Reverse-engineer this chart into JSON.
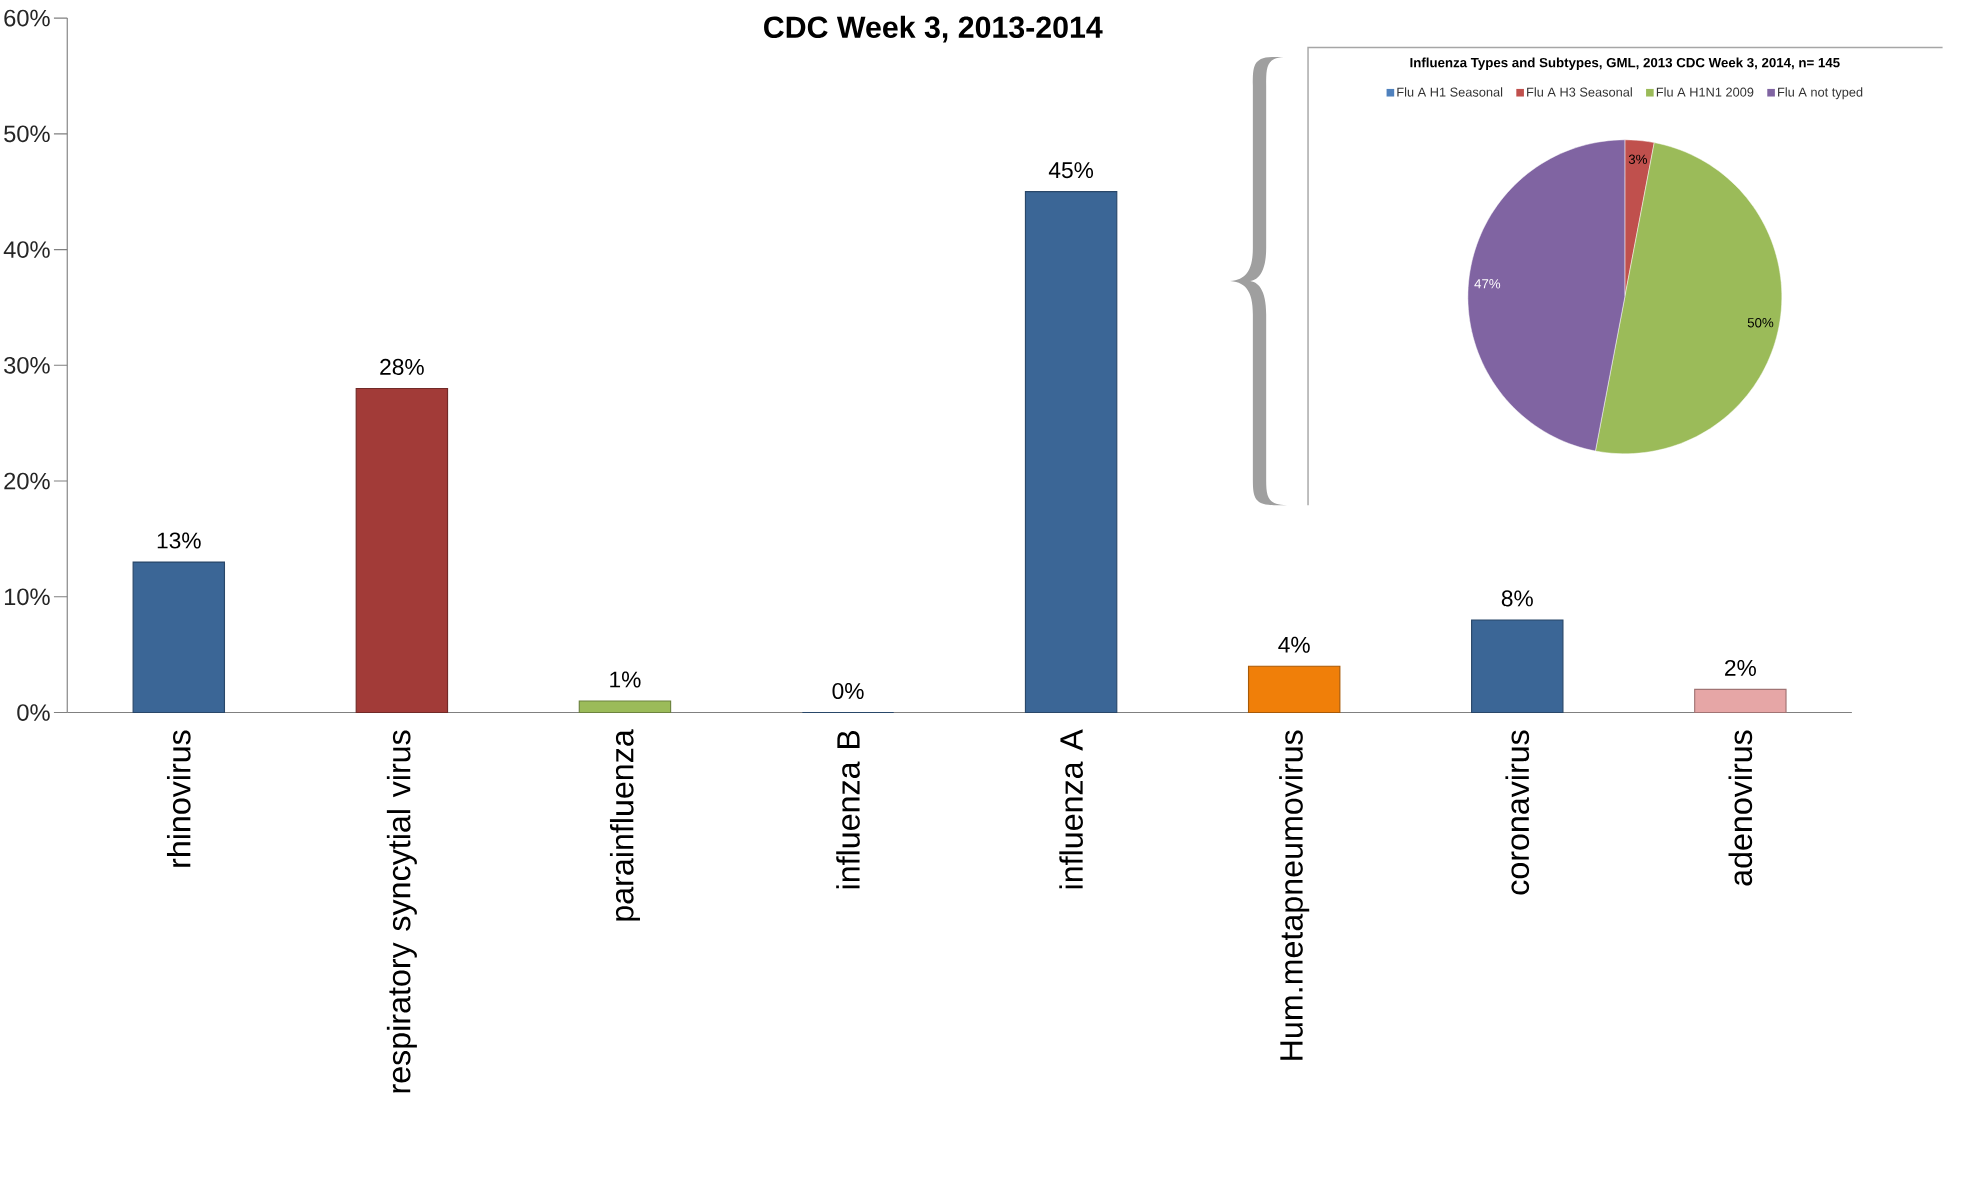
{
  "chart_data": [
    {
      "type": "bar",
      "title": "CDC Week 3, 2013-2014",
      "categories": [
        "rhinovirus",
        "respiratory syncytial virus",
        "parainfluenza",
        "influenza B",
        "influenza A",
        "Hum.metapneumovirus",
        "coronavirus",
        "adenovirus"
      ],
      "values": [
        13,
        28,
        1,
        0,
        45,
        4,
        8,
        2
      ],
      "colors": [
        "#3b6696",
        "#a23b38",
        "#9bbb59",
        "#3b6696",
        "#3b6696",
        "#f07f09",
        "#3b6696",
        "#e6a6a6"
      ],
      "value_labels": [
        "13%",
        "28%",
        "1%",
        "0%",
        "45%",
        "4%",
        "8%",
        "2%"
      ],
      "ylim": [
        0,
        60
      ],
      "yticks": [
        {
          "value": 0,
          "label": "0%"
        },
        {
          "value": 10,
          "label": "10%"
        },
        {
          "value": 20,
          "label": "20%"
        },
        {
          "value": 30,
          "label": "30%"
        },
        {
          "value": 40,
          "label": "40%"
        },
        {
          "value": 50,
          "label": "50%"
        },
        {
          "value": 60,
          "label": "60%"
        }
      ]
    },
    {
      "type": "pie",
      "title": "Influenza Types and Subtypes, GML, 2013 CDC Week 3, 2014, n= 145",
      "categories": [
        "Flu A H1 Seasonal",
        "Flu A H3 Seasonal",
        "Flu A H1N1 2009",
        "Flu A not typed"
      ],
      "values": [
        0,
        3,
        50,
        47
      ],
      "colors": [
        "#4f81bd",
        "#c0504d",
        "#9bbb59",
        "#8064a2"
      ],
      "value_labels": [
        null,
        "3%",
        "50%",
        "47%"
      ],
      "legend": "top"
    }
  ]
}
